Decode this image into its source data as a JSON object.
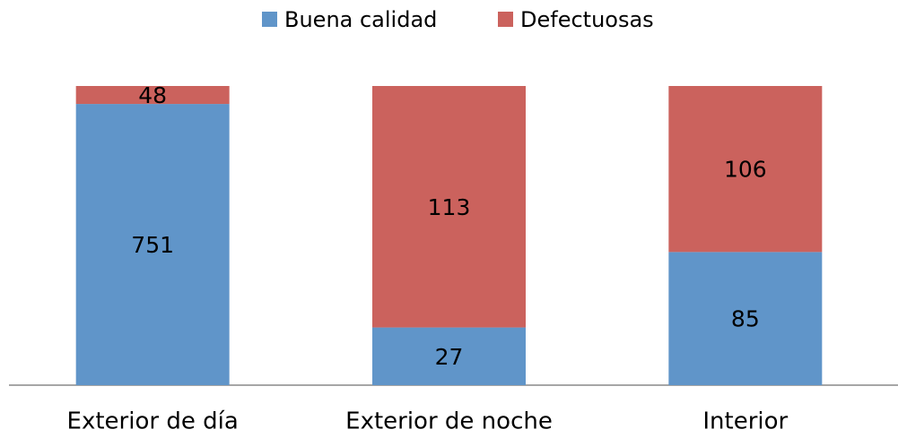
{
  "chart_data": {
    "type": "bar",
    "stacking": "percent",
    "legend": "top",
    "categories": [
      "Exterior de día",
      "Exterior de noche",
      "Interior"
    ],
    "series": [
      {
        "name": "Buena calidad",
        "color": "#6095c9",
        "values": [
          751,
          27,
          85
        ]
      },
      {
        "name": "Defectuosas",
        "color": "#cb625d",
        "values": [
          48,
          113,
          106
        ]
      }
    ]
  }
}
